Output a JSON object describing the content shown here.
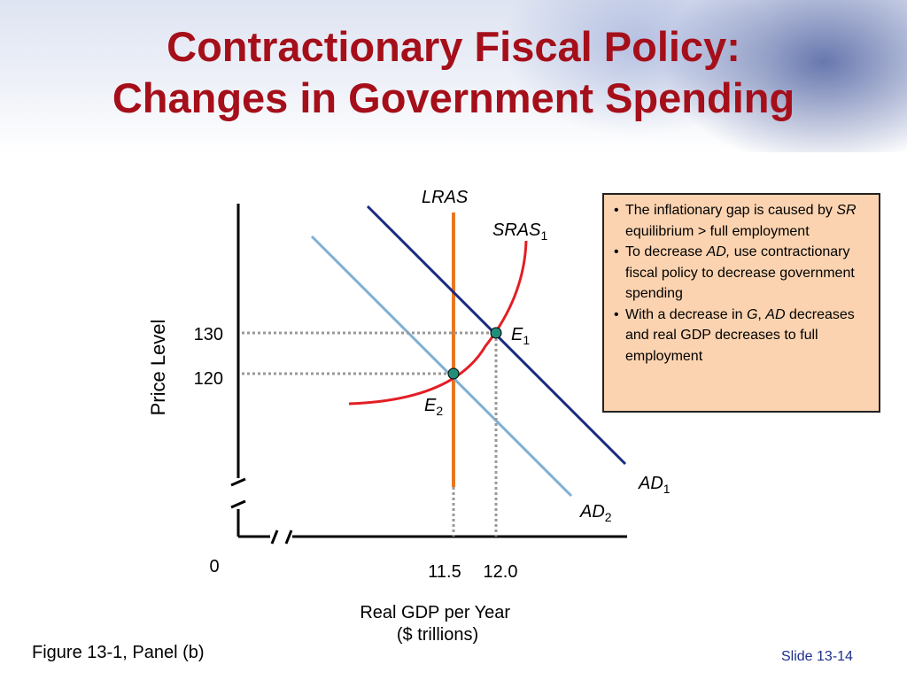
{
  "title": {
    "line1": "Contractionary Fiscal Policy:",
    "line2": "Changes in Government Spending"
  },
  "info_box": {
    "b1": {
      "t1": "The inflationary gap is caused by ",
      "t2": "SR",
      "t3": " equilibrium > full employment"
    },
    "b2": {
      "t1": "To decrease ",
      "t2": "AD,",
      "t3": " use contractionary  fiscal policy to decrease government spending"
    },
    "b3": {
      "t1": "With a decrease in ",
      "t2": "G",
      "t3": ", ",
      "t4": "AD",
      "t5": " decreases and real GDP decreases to full employment"
    }
  },
  "figure_caption": "Figure 13-1, Panel (b)",
  "slide_number": "Slide 13-14",
  "chart_data": {
    "type": "line",
    "title": "",
    "xlabel": [
      "Real GDP per Year",
      "($ trillions)"
    ],
    "ylabel": "Price Level",
    "origin_label": "0",
    "x_ticks": [
      {
        "value": 11.5,
        "label": "11.5"
      },
      {
        "value": 12.0,
        "label": "12.0"
      }
    ],
    "y_ticks": [
      {
        "value": 130,
        "label": "130"
      },
      {
        "value": 120,
        "label": "120"
      }
    ],
    "axis_breaks": true,
    "grid": false,
    "curves": [
      {
        "name": "LRAS",
        "label_base": "LRAS",
        "label_sub": "",
        "shape": "vertical",
        "x": 11.5,
        "color": "#e87722"
      },
      {
        "name": "SRAS1",
        "label_base": "SRAS",
        "label_sub": "1",
        "shape": "upward-convex",
        "color": "#e31e24"
      },
      {
        "name": "AD1",
        "label_base": "AD",
        "label_sub": "1",
        "shape": "downward-line",
        "color": "#1b2a80"
      },
      {
        "name": "AD2",
        "label_base": "AD",
        "label_sub": "2",
        "shape": "downward-line",
        "color": "#7fb0d4"
      }
    ],
    "points": [
      {
        "name": "E1",
        "label_base": "E",
        "label_sub": "1",
        "x": 12.0,
        "y": 130,
        "color": "#1f8f7a"
      },
      {
        "name": "E2",
        "label_base": "E",
        "label_sub": "2",
        "x": 11.5,
        "y": 120,
        "color": "#1f8f7a"
      }
    ]
  }
}
